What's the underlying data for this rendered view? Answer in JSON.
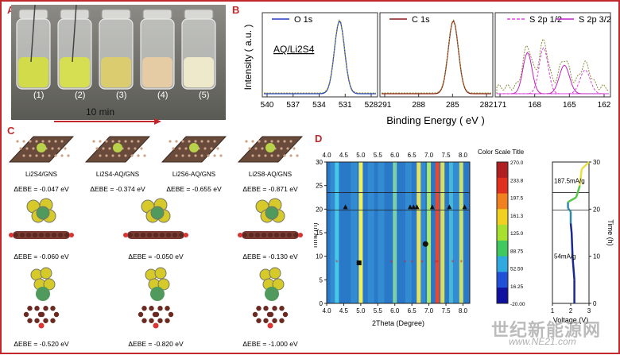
{
  "panel_labels": {
    "a": "A",
    "b": "B",
    "c": "C",
    "d": "D"
  },
  "panel_a": {
    "vials": [
      "(1)",
      "(2)",
      "(3)",
      "(4)",
      "(5)"
    ],
    "vial_colors": [
      "#d2dc4a",
      "#d6de52",
      "#dccc70",
      "#e6cca4",
      "#efe9cc"
    ],
    "time_label": "10 min",
    "arrow_color": "#c0282c"
  },
  "panel_b": {
    "legend": [
      "O 1s",
      "C 1s",
      "S 2p 1/2",
      "S 2p 3/2"
    ],
    "legend_colors": [
      "#1f3fbf",
      "#8b1a1a",
      "#e040e0",
      "#c020c0"
    ],
    "sample_label": "AQ/Li2S4",
    "ylabel": "Intensity ( a.u. )",
    "xlabel": "Binding Energy ( eV )",
    "ticks_o": [
      "540",
      "537",
      "534",
      "531",
      "528"
    ],
    "ticks_c": [
      "291",
      "288",
      "285",
      "282"
    ],
    "ticks_s": [
      "171",
      "168",
      "165",
      "162"
    ]
  },
  "panel_c": {
    "row1_labels": [
      "Li2S4/GNS",
      "Li2S4-AQ/GNS",
      "Li2S6-AQ/GNS",
      "Li2S8-AQ/GNS"
    ],
    "row1_energies": [
      "ΔEBE = -0.047 eV",
      "ΔEBE = -0.374 eV",
      "ΔEBE = -0.655 eV",
      "ΔEBE = -0.871 eV"
    ],
    "row2_energies": [
      "ΔEBE = -0.060 eV",
      "ΔEBE = -0.050 eV",
      "ΔEBE = -0.130 eV"
    ],
    "row3_energies": [
      "ΔEBE = -0.520 eV",
      "ΔEBE = -0.820 eV",
      "ΔEBE = -1.000 eV"
    ]
  },
  "chart_data": [
    {
      "type": "heatmap",
      "title": "",
      "xlabel": "2Theta (Degree)",
      "ylabel": "Time (h)",
      "xlim": [
        4.0,
        8.2
      ],
      "ylim": [
        0,
        30
      ],
      "x_ticks_bottom": [
        "4.0",
        "4.5",
        "5.0",
        "5.5",
        "6.0",
        "6.5",
        "7.0",
        "7.5",
        "8.0"
      ],
      "x_ticks_top": [
        "4.0",
        "4.5",
        "5.0",
        "5.5",
        "6.0",
        "6.5",
        "7.0",
        "7.5",
        "8.0"
      ],
      "y_ticks": [
        "0",
        "5",
        "10",
        "15",
        "20",
        "25",
        "30"
      ],
      "peaks_2theta": [
        4.3,
        5.0,
        6.0,
        6.7,
        7.0,
        7.25,
        7.4,
        7.65,
        7.95
      ],
      "horizontal_lines_h": [
        23.5,
        19.8
      ],
      "triangle_markers": [
        [
          4.55,
          20.5
        ],
        [
          6.45,
          20.5
        ],
        [
          6.55,
          20.5
        ],
        [
          6.65,
          20.5
        ],
        [
          7.1,
          20.5
        ],
        [
          7.6,
          20.5
        ],
        [
          8.05,
          20.5
        ]
      ],
      "star_markers": [
        [
          4.3,
          8.7
        ],
        [
          5.9,
          8.7
        ],
        [
          6.3,
          8.7
        ],
        [
          6.5,
          8.7
        ],
        [
          6.8,
          8.7
        ],
        [
          7.2,
          8.7
        ],
        [
          7.25,
          8.7
        ],
        [
          7.7,
          8.7
        ],
        [
          7.95,
          8.7
        ]
      ],
      "square_marker": [
        4.95,
        8.6
      ],
      "circle_marker": [
        6.9,
        12.6
      ]
    },
    {
      "type": "line",
      "title": "Color Scale Title",
      "colorbar_ticks": [
        "270.0",
        "233.8",
        "197.5",
        "161.3",
        "125.0",
        "88.75",
        "52.50",
        "16.25",
        "-20.00"
      ]
    },
    {
      "type": "line",
      "xlabel": "Voltage (V)",
      "ylabel": "Time (h)",
      "xlim": [
        1,
        3
      ],
      "ylim": [
        0,
        30
      ],
      "x_ticks": [
        "1",
        "2",
        "3"
      ],
      "y_ticks": [
        "0",
        "10",
        "20",
        "30"
      ],
      "annotations": [
        "187.5mA/g",
        "54mA/g"
      ],
      "horizontal_lines_h": [
        23.5,
        19.8
      ],
      "series": [
        {
          "x": [
            2.2,
            2.2,
            2.1,
            2.05,
            2.0,
            2.0,
            1.85,
            1.85,
            2.3,
            2.5,
            2.6,
            3.0
          ],
          "y": [
            0,
            5,
            10,
            15,
            17,
            19.5,
            20.2,
            21.5,
            22.5,
            25,
            28.5,
            30
          ]
        }
      ]
    }
  ],
  "watermark": [
    "世纪新能源网",
    "www.NE21.com"
  ]
}
